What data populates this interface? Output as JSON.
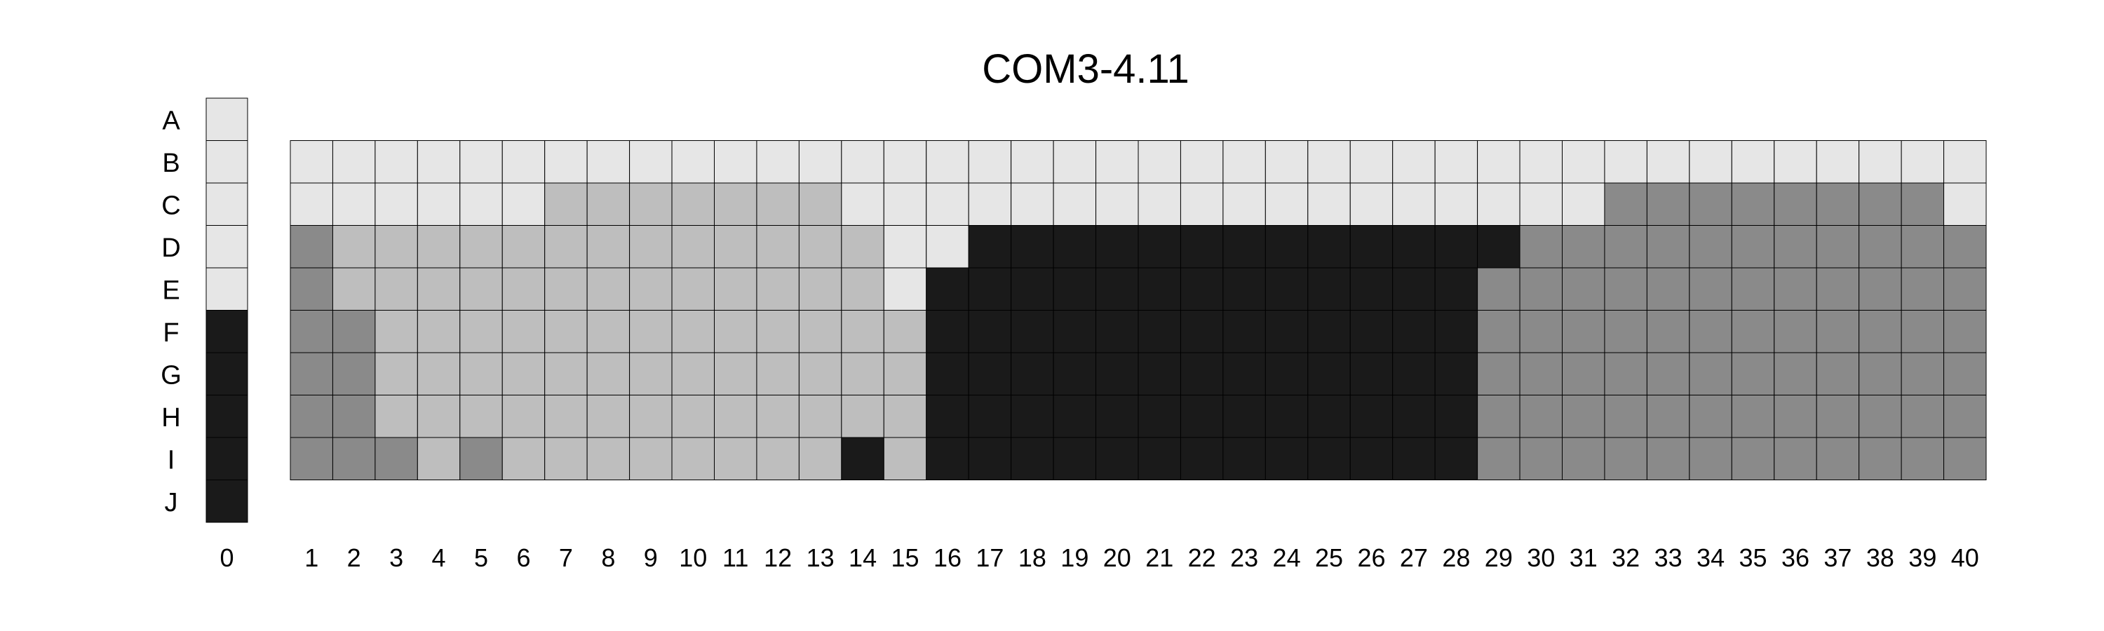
{
  "chart_data": {
    "type": "heatmap",
    "title": "COM3-4.11",
    "rows": [
      "A",
      "B",
      "C",
      "D",
      "E",
      "F",
      "G",
      "H",
      "I",
      "J"
    ],
    "column0": {
      "label": "0",
      "values": [
        0,
        0,
        0,
        0,
        0,
        3,
        3,
        3,
        3,
        3
      ]
    },
    "columns": [
      "1",
      "2",
      "3",
      "4",
      "5",
      "6",
      "7",
      "8",
      "9",
      "10",
      "11",
      "12",
      "13",
      "14",
      "15",
      "16",
      "17",
      "18",
      "19",
      "20",
      "21",
      "22",
      "23",
      "24",
      "25",
      "26",
      "27",
      "28",
      "29",
      "30",
      "31",
      "32",
      "33",
      "34",
      "35",
      "36",
      "37",
      "38",
      "39",
      "40"
    ],
    "grid_rows": [
      "B",
      "C",
      "D",
      "E",
      "F",
      "G",
      "H",
      "I"
    ],
    "values": [
      [
        0,
        0,
        0,
        0,
        0,
        0,
        0,
        0,
        0,
        0,
        0,
        0,
        0,
        0,
        0,
        0,
        0,
        0,
        0,
        0,
        0,
        0,
        0,
        0,
        0,
        0,
        0,
        0,
        0,
        0,
        0,
        0,
        0,
        0,
        0,
        0,
        0,
        0,
        0,
        0
      ],
      [
        0,
        0,
        0,
        0,
        0,
        0,
        1,
        1,
        1,
        1,
        1,
        1,
        1,
        0,
        0,
        0,
        0,
        0,
        0,
        0,
        0,
        0,
        0,
        0,
        0,
        0,
        0,
        0,
        0,
        0,
        0,
        2,
        2,
        2,
        2,
        2,
        2,
        2,
        2,
        0
      ],
      [
        2,
        1,
        1,
        1,
        1,
        1,
        1,
        1,
        1,
        1,
        1,
        1,
        1,
        1,
        0,
        0,
        3,
        3,
        3,
        3,
        3,
        3,
        3,
        3,
        3,
        3,
        3,
        3,
        3,
        2,
        2,
        2,
        2,
        2,
        2,
        2,
        2,
        2,
        2,
        2
      ],
      [
        2,
        1,
        1,
        1,
        1,
        1,
        1,
        1,
        1,
        1,
        1,
        1,
        1,
        1,
        0,
        3,
        3,
        3,
        3,
        3,
        3,
        3,
        3,
        3,
        3,
        3,
        3,
        3,
        2,
        2,
        2,
        2,
        2,
        2,
        2,
        2,
        2,
        2,
        2,
        2
      ],
      [
        2,
        2,
        1,
        1,
        1,
        1,
        1,
        1,
        1,
        1,
        1,
        1,
        1,
        1,
        1,
        3,
        3,
        3,
        3,
        3,
        3,
        3,
        3,
        3,
        3,
        3,
        3,
        3,
        2,
        2,
        2,
        2,
        2,
        2,
        2,
        2,
        2,
        2,
        2,
        2
      ],
      [
        2,
        2,
        1,
        1,
        1,
        1,
        1,
        1,
        1,
        1,
        1,
        1,
        1,
        1,
        1,
        3,
        3,
        3,
        3,
        3,
        3,
        3,
        3,
        3,
        3,
        3,
        3,
        3,
        2,
        2,
        2,
        2,
        2,
        2,
        2,
        2,
        2,
        2,
        2,
        2
      ],
      [
        2,
        2,
        1,
        1,
        1,
        1,
        1,
        1,
        1,
        1,
        1,
        1,
        1,
        1,
        1,
        3,
        3,
        3,
        3,
        3,
        3,
        3,
        3,
        3,
        3,
        3,
        3,
        3,
        2,
        2,
        2,
        2,
        2,
        2,
        2,
        2,
        2,
        2,
        2,
        2
      ],
      [
        2,
        2,
        2,
        1,
        2,
        1,
        1,
        1,
        1,
        1,
        1,
        1,
        1,
        3,
        1,
        3,
        3,
        3,
        3,
        3,
        3,
        3,
        3,
        3,
        3,
        3,
        3,
        3,
        2,
        2,
        2,
        2,
        2,
        2,
        2,
        2,
        2,
        2,
        2,
        2
      ]
    ],
    "level_colors": [
      "#e6e6e6",
      "#bebebe",
      "#8a8a8a",
      "#1a1a1a"
    ],
    "grid": true,
    "legend": "none"
  }
}
